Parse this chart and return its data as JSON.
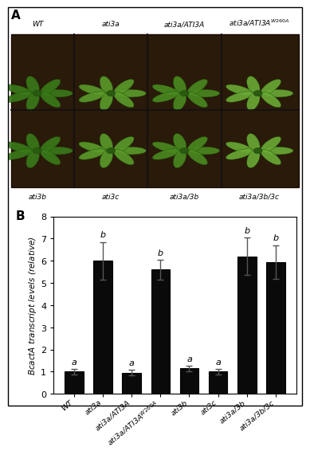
{
  "categories": [
    "WT",
    "ati3a",
    "ati3a/ATI3A",
    "ati3a/ATI3A$^{W260A}$",
    "ati3b",
    "ati3c",
    "ati3a/3b",
    "ati3a/3b/3c"
  ],
  "values": [
    1.0,
    6.0,
    0.95,
    5.6,
    1.15,
    1.0,
    6.2,
    5.95
  ],
  "errors": [
    0.12,
    0.85,
    0.12,
    0.45,
    0.12,
    0.12,
    0.85,
    0.75
  ],
  "sig_labels": [
    "a",
    "b",
    "a",
    "b",
    "a",
    "a",
    "b",
    "b"
  ],
  "bar_color": "#0a0a0a",
  "bar_edge_color": "#000000",
  "ylabel": "$BcactA$ transcript levels (relative)",
  "ylim": [
    0,
    8
  ],
  "yticks": [
    0,
    1,
    2,
    3,
    4,
    5,
    6,
    7,
    8
  ],
  "background_color": "#ffffff",
  "photo_bg": "#4a6e3a",
  "photo_top_labels": [
    "WT",
    "ati3a",
    "ati3a/ATI3A",
    "ati3a/ATI3A$^{W260A}$"
  ],
  "photo_bot_labels": [
    "ati3b",
    "ati3c",
    "ati3a/3b",
    "ati3a/3b/3c"
  ],
  "panel_a_label": "A",
  "panel_b_label": "B",
  "fig_width": 3.69,
  "fig_height": 5.0,
  "xtick_labels_rotation": 40,
  "bar_width": 0.65
}
